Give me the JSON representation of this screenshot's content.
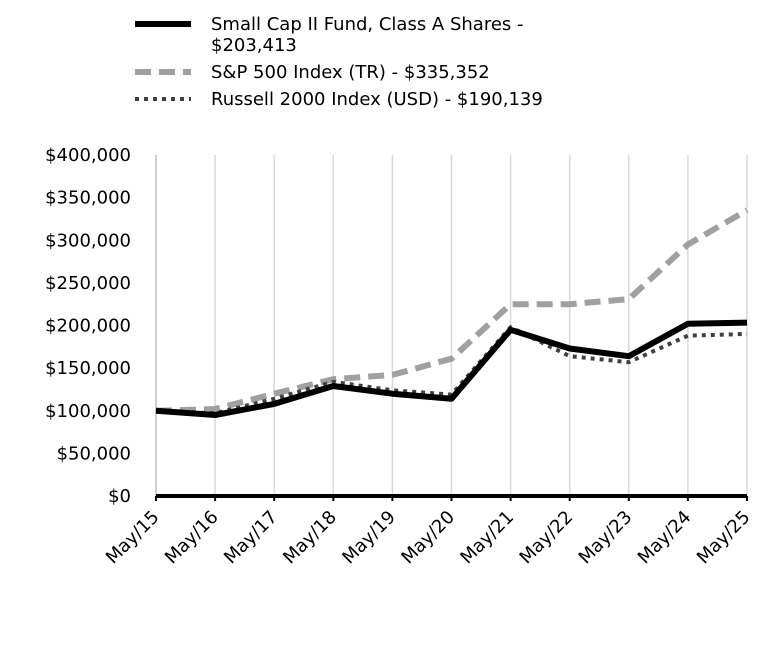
{
  "chart_data": {
    "type": "line",
    "title": "",
    "xlabel": "",
    "ylabel": "",
    "categories": [
      "May/15",
      "May/16",
      "May/17",
      "May/18",
      "May/19",
      "May/20",
      "May/21",
      "May/22",
      "May/23",
      "May/24",
      "May/25"
    ],
    "y_tick_labels": [
      "$0",
      "$50,000",
      "$100,000",
      "$150,000",
      "$200,000",
      "$250,000",
      "$300,000",
      "$350,000",
      "$400,000"
    ],
    "ylim": [
      0,
      400000
    ],
    "grid": "vertical",
    "legend_position": "top",
    "series": [
      {
        "name": "Small Cap II Fund, Class A Shares - $203,413",
        "color": "#000000",
        "style": "solid",
        "values": [
          100000,
          95000,
          108000,
          129000,
          120000,
          114000,
          195000,
          173000,
          164000,
          202000,
          203413
        ]
      },
      {
        "name": "S&P 500 Index (TR) - $335,352",
        "color": "#a0a0a0",
        "style": "dashed",
        "values": [
          100000,
          102000,
          120000,
          137000,
          142000,
          161000,
          225000,
          225000,
          231000,
          295000,
          335352
        ]
      },
      {
        "name": "Russell 2000 Index (USD) - $190,139",
        "color": "#404040",
        "style": "dotted",
        "values": [
          100000,
          97000,
          114000,
          134000,
          124000,
          119000,
          198000,
          164000,
          157000,
          188000,
          190139
        ]
      }
    ]
  }
}
